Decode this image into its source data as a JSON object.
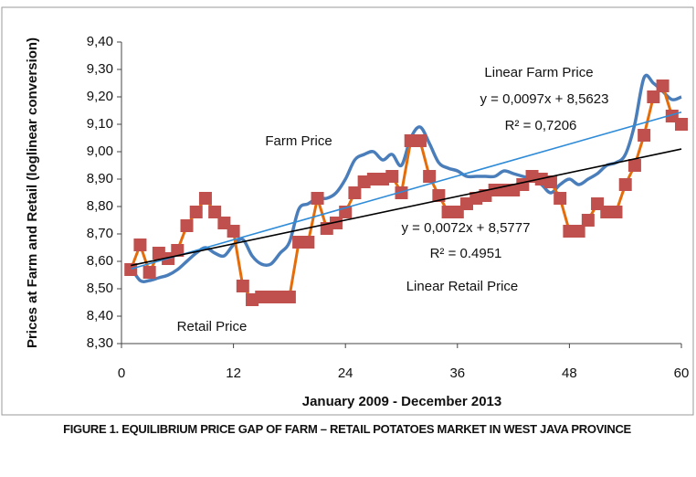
{
  "chart_data": {
    "type": "line",
    "title": "FIGURE 1. EQUILIBRIUM PRICE GAP OF FARM – RETAIL POTATOES MARKET IN WEST JAVA PROVINCE",
    "xlabel": "January 2009 - December 2013",
    "ylabel": "Prices at Farm and Retail (loglinear conversion)",
    "x": [
      1,
      2,
      3,
      4,
      5,
      6,
      7,
      8,
      9,
      10,
      11,
      12,
      13,
      14,
      15,
      16,
      17,
      18,
      19,
      20,
      21,
      22,
      23,
      24,
      25,
      26,
      27,
      28,
      29,
      30,
      31,
      32,
      33,
      34,
      35,
      36,
      37,
      38,
      39,
      40,
      41,
      42,
      43,
      44,
      45,
      46,
      47,
      48,
      49,
      50,
      51,
      52,
      53,
      54,
      55,
      56,
      57,
      58,
      59,
      60
    ],
    "series": [
      {
        "name": "Farm Price",
        "color": "#4a7ebb",
        "smooth": true,
        "values": [
          8.58,
          8.53,
          8.53,
          8.54,
          8.55,
          8.57,
          8.6,
          8.63,
          8.65,
          8.63,
          8.62,
          8.66,
          8.68,
          8.62,
          8.59,
          8.59,
          8.63,
          8.67,
          8.79,
          8.81,
          8.83,
          8.83,
          8.85,
          8.9,
          8.97,
          8.99,
          9.0,
          8.97,
          8.99,
          8.95,
          9.05,
          9.09,
          9.03,
          8.96,
          8.94,
          8.93,
          8.91,
          8.91,
          8.91,
          8.91,
          8.93,
          8.92,
          8.91,
          8.9,
          8.88,
          8.85,
          8.88,
          8.9,
          8.88,
          8.9,
          8.92,
          8.95,
          8.96,
          8.99,
          9.1,
          9.27,
          9.25,
          9.22,
          9.19,
          9.2
        ]
      },
      {
        "name": "Retail Price",
        "color": "#e46c0a",
        "marker_color": "#c0504d",
        "values": [
          8.57,
          8.66,
          8.56,
          8.63,
          8.61,
          8.64,
          8.73,
          8.78,
          8.83,
          8.78,
          8.74,
          8.71,
          8.51,
          8.46,
          8.47,
          8.47,
          8.47,
          8.47,
          8.67,
          8.67,
          8.83,
          8.72,
          8.74,
          8.78,
          8.85,
          8.89,
          8.9,
          8.9,
          8.91,
          8.85,
          9.04,
          9.04,
          8.91,
          8.84,
          8.78,
          8.78,
          8.81,
          8.83,
          8.84,
          8.86,
          8.86,
          8.86,
          8.88,
          8.91,
          8.9,
          8.89,
          8.83,
          8.71,
          8.71,
          8.75,
          8.81,
          8.78,
          8.78,
          8.88,
          8.95,
          9.06,
          9.2,
          9.24,
          9.13,
          9.1
        ]
      }
    ],
    "trendlines": [
      {
        "name": "Linear Farm Price",
        "color": "#2e8bd8",
        "slope": 0.0097,
        "intercept": 8.5623,
        "equation": "y = 0,0097x + 8,5623",
        "r2": "R² = 0,7206"
      },
      {
        "name": "Linear Retail Price",
        "color": "#000000",
        "slope": 0.0072,
        "intercept": 8.5777,
        "equation": "y = 0,0072x + 8,5777",
        "r2": "R² = 0.4951"
      }
    ],
    "xlim": [
      0,
      60
    ],
    "xticks": [
      0,
      12,
      24,
      36,
      48,
      60
    ],
    "ylim": [
      8.3,
      9.4
    ],
    "yticks": [
      {
        "value": 8.3,
        "label": "8,30"
      },
      {
        "value": 8.4,
        "label": "8,40"
      },
      {
        "value": 8.5,
        "label": "8,50"
      },
      {
        "value": 8.6,
        "label": "8,60"
      },
      {
        "value": 8.7,
        "label": "8,70"
      },
      {
        "value": 8.8,
        "label": "8,80"
      },
      {
        "value": 8.9,
        "label": "8,90"
      },
      {
        "value": 9.0,
        "label": "9,00"
      },
      {
        "value": 9.1,
        "label": "9,10"
      },
      {
        "value": 9.2,
        "label": "9,20"
      },
      {
        "value": 9.3,
        "label": "9,30"
      },
      {
        "value": 9.4,
        "label": "9,40"
      }
    ],
    "grid": false
  }
}
